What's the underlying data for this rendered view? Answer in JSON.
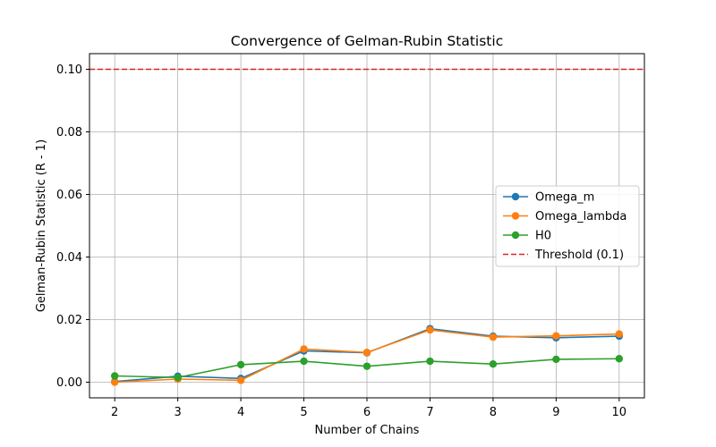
{
  "chart_data": {
    "type": "line",
    "title": "Convergence of Gelman-Rubin Statistic",
    "xlabel": "Number of Chains",
    "ylabel": "Gelman-Rubin Statistic (R - 1)",
    "x": [
      2,
      3,
      4,
      5,
      6,
      7,
      8,
      9,
      10
    ],
    "xlim": [
      1.6,
      10.4
    ],
    "ylim": [
      -0.005,
      0.105
    ],
    "xticks": [
      "2",
      "3",
      "4",
      "5",
      "6",
      "7",
      "8",
      "9",
      "10"
    ],
    "yticks": [
      "0.00",
      "0.02",
      "0.04",
      "0.06",
      "0.08",
      "0.10"
    ],
    "ytick_values": [
      0.0,
      0.02,
      0.04,
      0.06,
      0.08,
      0.1
    ],
    "grid": true,
    "legend_position": "center-right",
    "series": [
      {
        "name": "Omega_m",
        "color": "#1f77b4",
        "values": [
          0.0002,
          0.0019,
          0.0012,
          0.01,
          0.0094,
          0.0171,
          0.0147,
          0.0142,
          0.0147
        ]
      },
      {
        "name": "Omega_lambda",
        "color": "#ff7f0e",
        "values": [
          0.0,
          0.001,
          0.0006,
          0.0106,
          0.0095,
          0.0167,
          0.0144,
          0.0148,
          0.0154
        ]
      },
      {
        "name": "H0",
        "color": "#2ca02c",
        "values": [
          0.002,
          0.0015,
          0.0056,
          0.0067,
          0.0051,
          0.0067,
          0.0058,
          0.0073,
          0.0075
        ]
      }
    ],
    "threshold": {
      "name": "Threshold (0.1)",
      "value": 0.1,
      "color": "#d62728",
      "style": "dashed"
    }
  }
}
